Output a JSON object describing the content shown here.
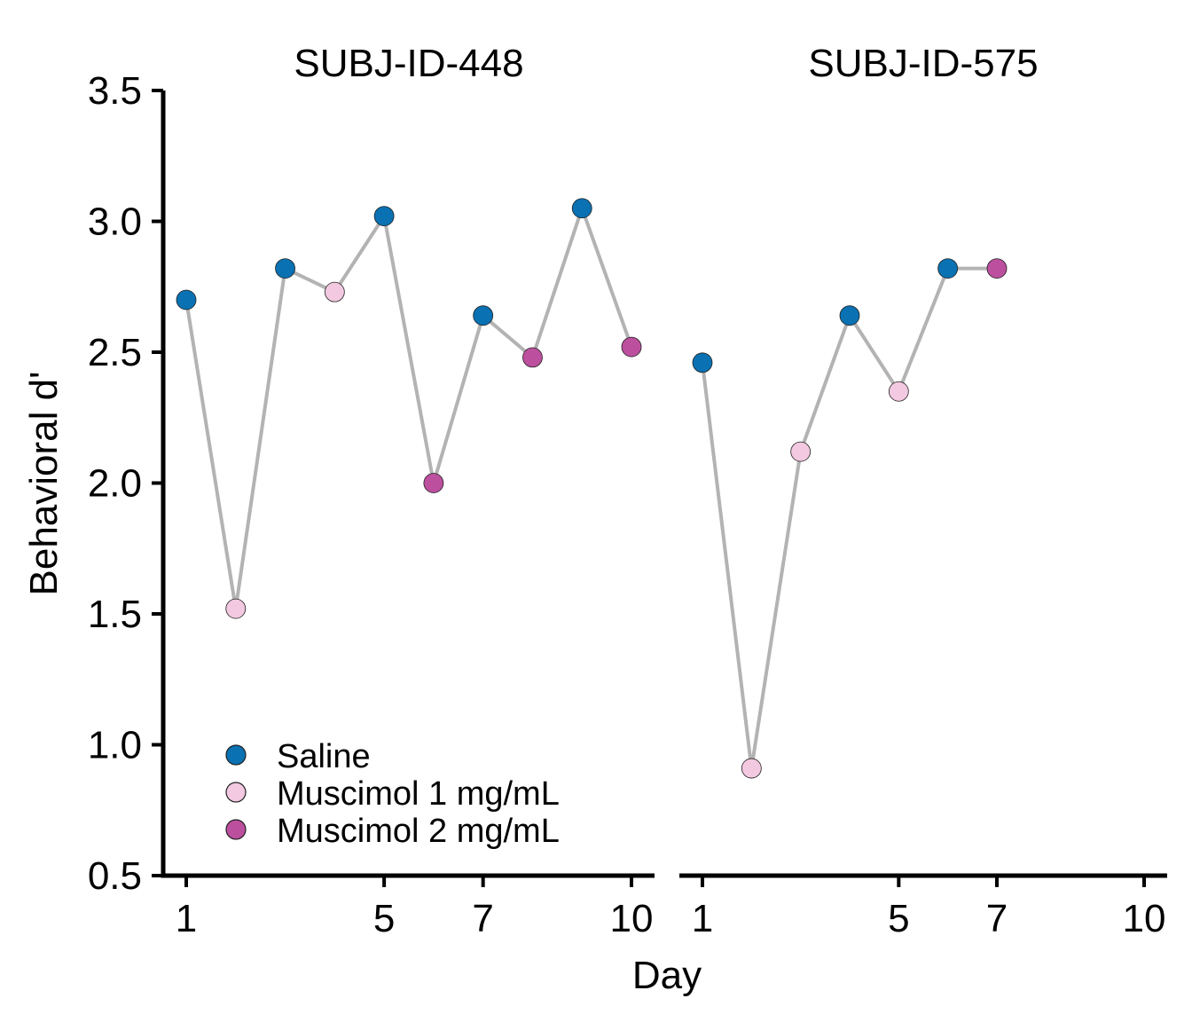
{
  "chart_data": {
    "type": "scatter",
    "ylabel": "Behavioral d'",
    "xlabel": "Day",
    "ylim": [
      0.5,
      3.5
    ],
    "yticks": [
      "0.5",
      "1.0",
      "1.5",
      "2.0",
      "2.5",
      "3.0",
      "3.5"
    ],
    "xlim": [
      0.6,
      10.4
    ],
    "xticks": [
      "1",
      "5",
      "7",
      "10"
    ],
    "line_color": "#b3b3b3",
    "conditions": [
      {
        "name": "Saline",
        "color": "#0a71b2"
      },
      {
        "name": "Muscimol 1 mg/mL",
        "color": "#f2c9e1"
      },
      {
        "name": "Muscimol 2 mg/mL",
        "color": "#bc4f9e"
      }
    ],
    "legend_position": "bottom-left",
    "panels": [
      {
        "title": "SUBJ-ID-448",
        "points": [
          {
            "x": 1,
            "y": 2.7,
            "condition": 0
          },
          {
            "x": 2,
            "y": 1.52,
            "condition": 1
          },
          {
            "x": 3,
            "y": 2.82,
            "condition": 0
          },
          {
            "x": 4,
            "y": 2.73,
            "condition": 1
          },
          {
            "x": 5,
            "y": 3.02,
            "condition": 0
          },
          {
            "x": 6,
            "y": 2.0,
            "condition": 2
          },
          {
            "x": 7,
            "y": 2.64,
            "condition": 0
          },
          {
            "x": 8,
            "y": 2.48,
            "condition": 2
          },
          {
            "x": 9,
            "y": 3.05,
            "condition": 0
          },
          {
            "x": 10,
            "y": 2.52,
            "condition": 2
          }
        ]
      },
      {
        "title": "SUBJ-ID-575",
        "points": [
          {
            "x": 1,
            "y": 2.46,
            "condition": 0
          },
          {
            "x": 2,
            "y": 0.91,
            "condition": 1
          },
          {
            "x": 3,
            "y": 2.12,
            "condition": 1
          },
          {
            "x": 4,
            "y": 2.64,
            "condition": 0
          },
          {
            "x": 5,
            "y": 2.35,
            "condition": 1
          },
          {
            "x": 6,
            "y": 2.82,
            "condition": 0
          },
          {
            "x": 7,
            "y": 2.82,
            "condition": 2
          }
        ]
      }
    ]
  }
}
